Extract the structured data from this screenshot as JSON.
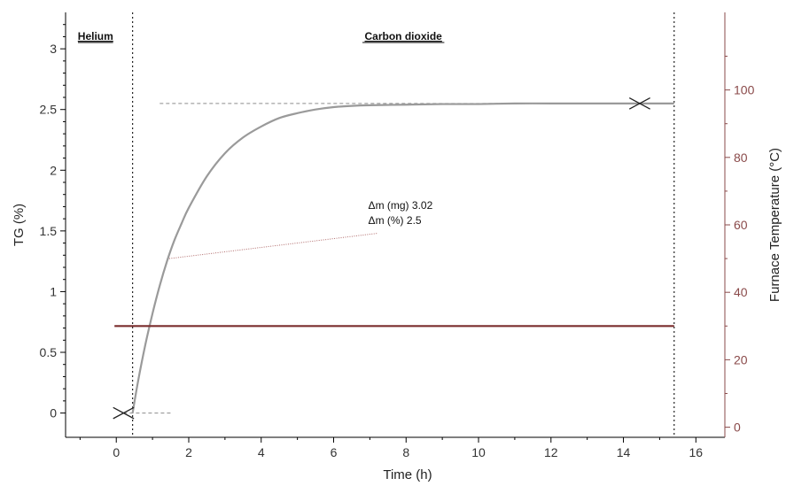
{
  "colors": {
    "tg": "#9a9a9a",
    "temperature": "#7a2e2e",
    "temperature_axis": "#8a4a4a",
    "axis": "#000000",
    "guide": "#8c8c8c",
    "connector": "#b06a6a"
  },
  "chart_data": {
    "type": "line",
    "title": "",
    "xlabel": "Time (h)",
    "ylabel": "TG (%)",
    "y2label": "Furnace Temperature (°C)",
    "xlim": [
      -1.4,
      16.8
    ],
    "ylim": [
      -0.2,
      3.3
    ],
    "y2lim": [
      -3,
      123
    ],
    "xticks": [
      "0",
      "2",
      "4",
      "6",
      "8",
      "10",
      "12",
      "14",
      "16"
    ],
    "yticks": [
      "0",
      "0.5",
      "1",
      "1.5",
      "2",
      "2.5",
      "3"
    ],
    "y2ticks": [
      "0",
      "20",
      "40",
      "60",
      "80",
      "100"
    ],
    "grid": false,
    "regions": [
      {
        "label": "Helium",
        "from": -1.4,
        "to": 0.45
      },
      {
        "label": "Carbon dioxide",
        "from": 0.45,
        "to": 15.4
      }
    ],
    "region_boundaries": [
      0.45,
      15.4
    ],
    "series": [
      {
        "axis": "left",
        "x": [
          0.45,
          0.6,
          0.8,
          1.0,
          1.2,
          1.4,
          1.6,
          1.8,
          2.0,
          2.5,
          3.0,
          3.5,
          4.0,
          4.5,
          5.0,
          5.5,
          6.0,
          6.5,
          7.0,
          8.0,
          9.0,
          10.0,
          11.0,
          12.0,
          13.0,
          14.0,
          15.4
        ],
        "values": [
          0.0,
          0.26,
          0.56,
          0.82,
          1.05,
          1.25,
          1.42,
          1.56,
          1.69,
          1.95,
          2.14,
          2.27,
          2.36,
          2.43,
          2.47,
          2.5,
          2.52,
          2.53,
          2.535,
          2.54,
          2.545,
          2.545,
          2.55,
          2.55,
          2.55,
          2.55,
          2.55
        ]
      },
      {
        "axis": "right",
        "x": [
          -0.05,
          15.4
        ],
        "values": [
          30,
          30
        ]
      }
    ],
    "markers": [
      {
        "x": 0.2,
        "y": 0.0,
        "shape": "cross"
      },
      {
        "x": 14.45,
        "y": 2.55,
        "shape": "cross"
      }
    ],
    "reference_lines": [
      {
        "y": 2.55,
        "from": 1.2,
        "to": 14.45
      },
      {
        "y": 0.0,
        "from": 0.2,
        "to": 1.5
      }
    ],
    "annotation": {
      "lines": [
        "Δm (mg) 3.02",
        "Δm (%) 2.5"
      ],
      "anchor": {
        "x": 7.2,
        "y": 1.48
      },
      "target": {
        "x": 1.4,
        "y": 1.27
      }
    }
  }
}
